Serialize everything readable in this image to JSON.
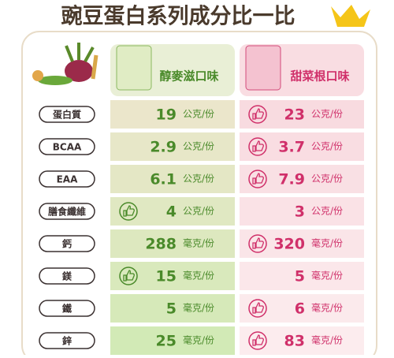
{
  "header": {
    "title": "豌豆蛋白系列成分比一比"
  },
  "columns": [
    "醇麥滋口味",
    "甜菜根口味"
  ],
  "rows": [
    {
      "label": "蛋白質",
      "left": {
        "value": 19,
        "unit": "公克/份"
      },
      "right": {
        "value": 23,
        "unit": "公克/份"
      },
      "winner": "right"
    },
    {
      "label": "BCAA",
      "left": {
        "value": 2.9,
        "unit": "公克/份"
      },
      "right": {
        "value": 3.7,
        "unit": "公克/份"
      },
      "winner": "right"
    },
    {
      "label": "EAA",
      "left": {
        "value": 6.1,
        "unit": "公克/份"
      },
      "right": {
        "value": 7.9,
        "unit": "公克/份"
      },
      "winner": "right"
    },
    {
      "label": "膳食纖維",
      "left": {
        "value": 4,
        "unit": "公克/份"
      },
      "right": {
        "value": 3,
        "unit": "公克/份"
      },
      "winner": "left"
    },
    {
      "label": "鈣",
      "left": {
        "value": 288,
        "unit": "毫克/份"
      },
      "right": {
        "value": 320,
        "unit": "毫克/份"
      },
      "winner": "right"
    },
    {
      "label": "鎂",
      "left": {
        "value": 15,
        "unit": "毫克/份"
      },
      "right": {
        "value": 5,
        "unit": "毫克/份"
      },
      "winner": "left"
    },
    {
      "label": "鐵",
      "left": {
        "value": 5,
        "unit": "毫克/份"
      },
      "right": {
        "value": 6,
        "unit": "毫克/份"
      },
      "winner": "right"
    },
    {
      "label": "鋅",
      "left": {
        "value": 25,
        "unit": "毫克/份"
      },
      "right": {
        "value": 83,
        "unit": "毫克/份"
      },
      "winner": "right"
    }
  ]
}
